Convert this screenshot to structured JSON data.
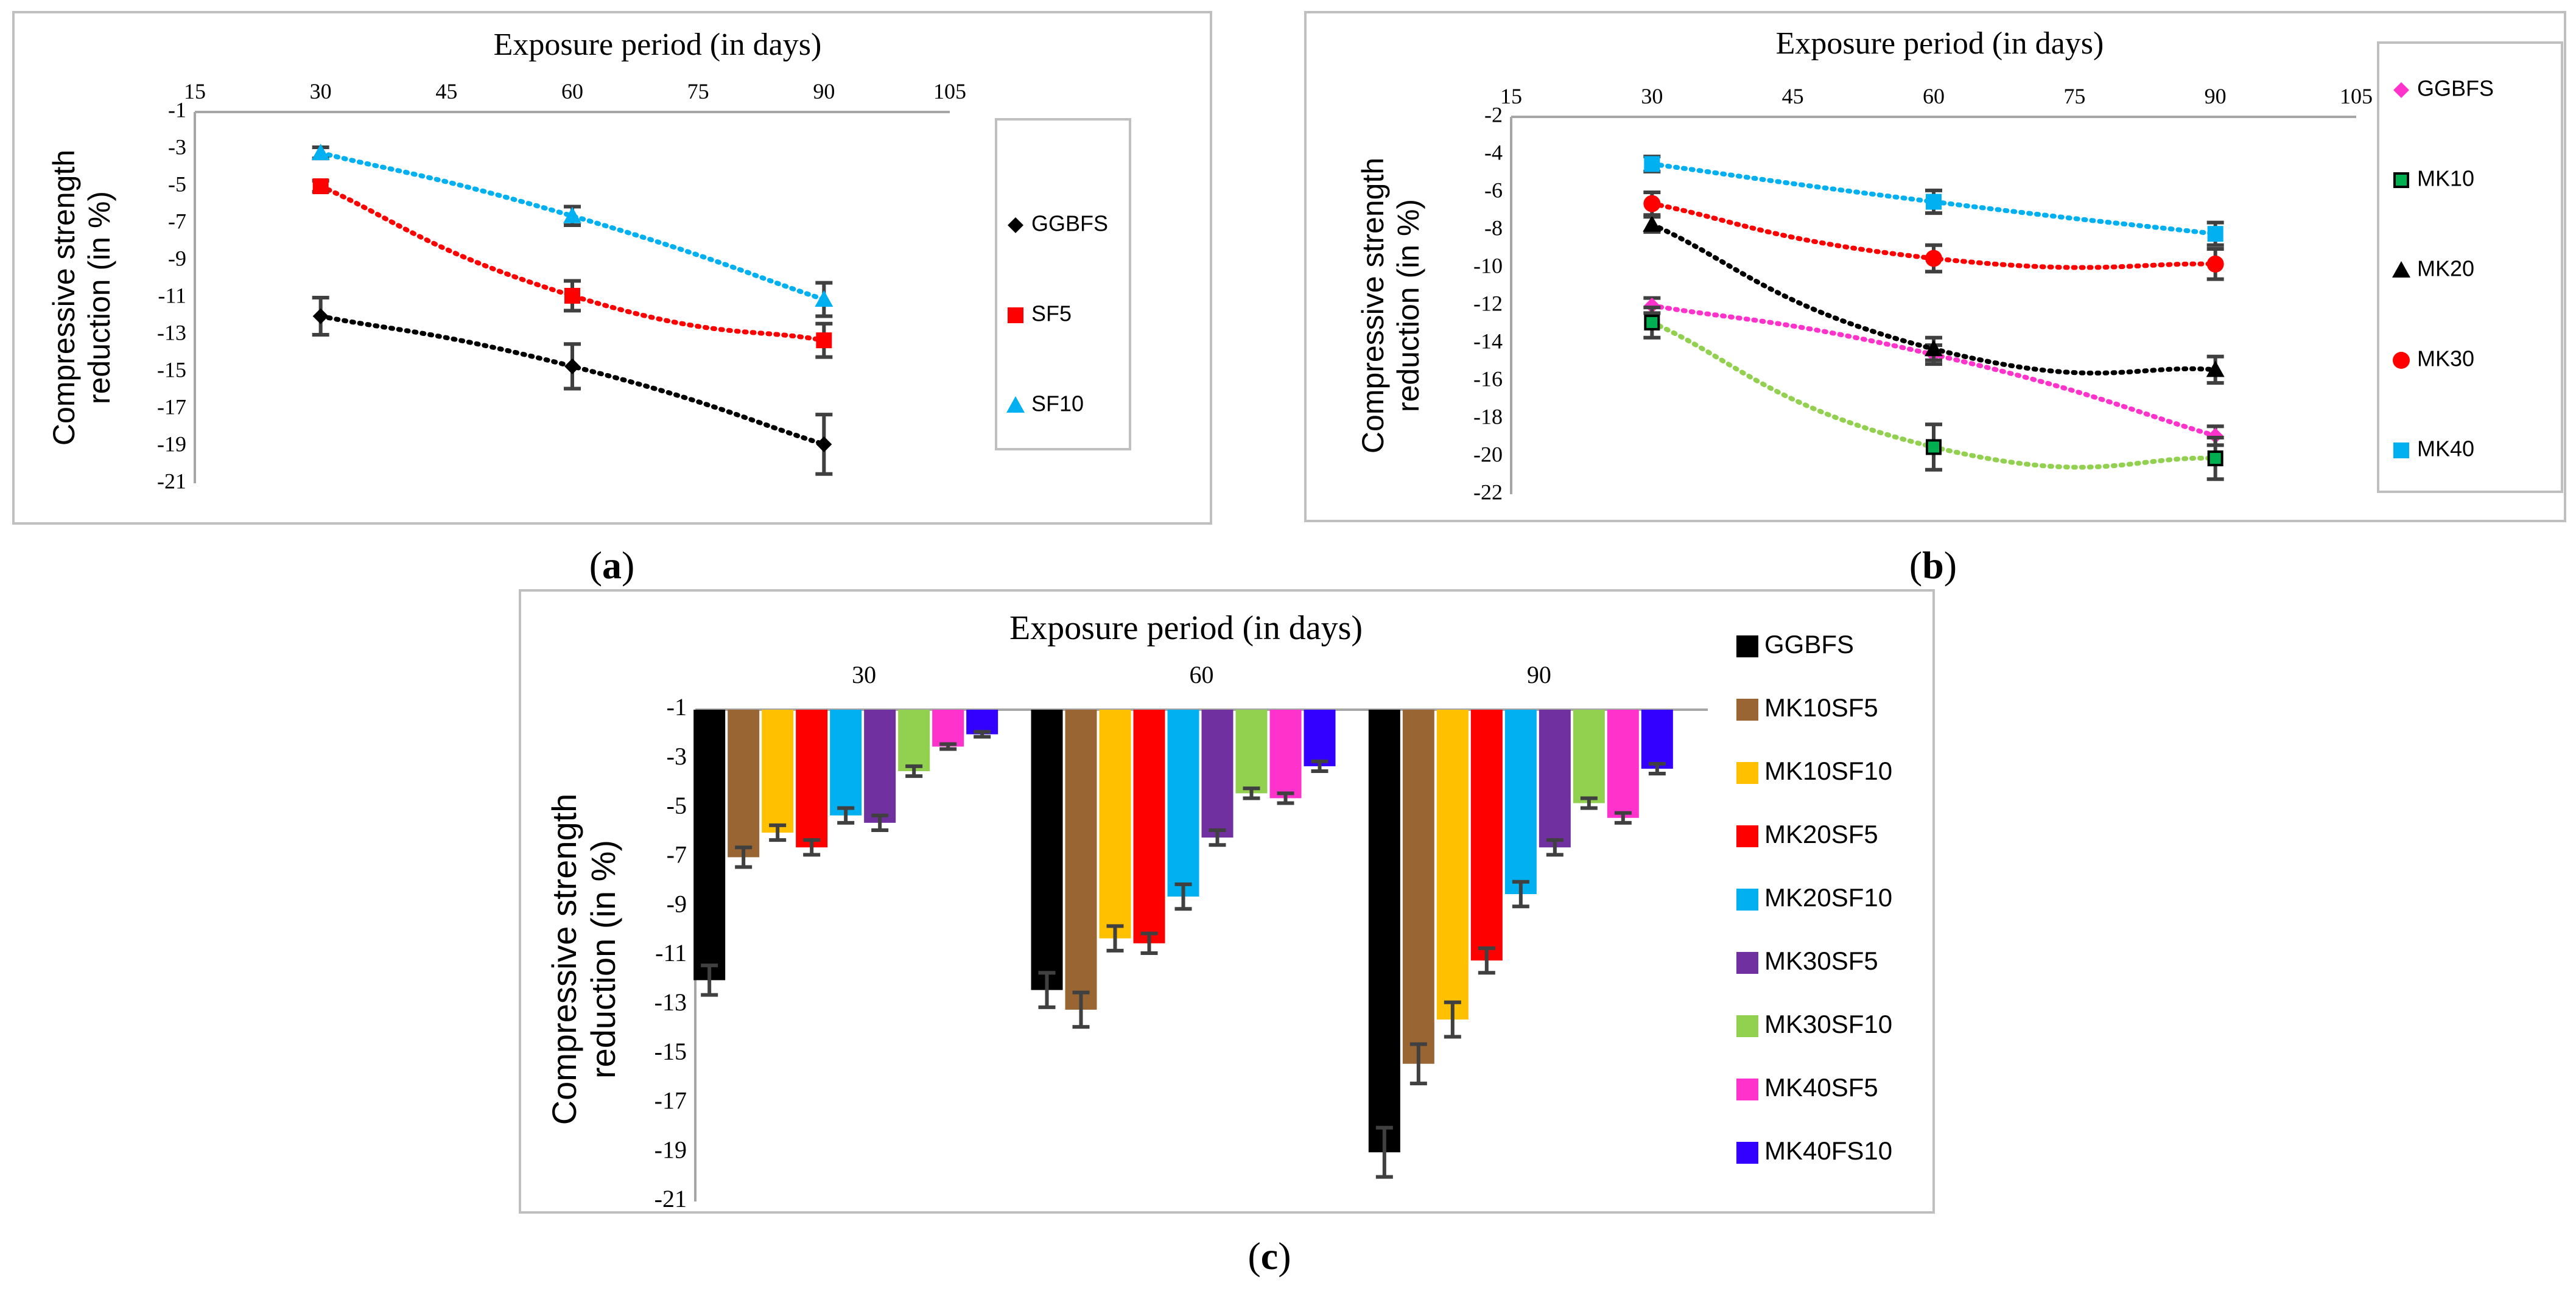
{
  "chart_data": [
    {
      "panel": "a",
      "caption_letter": "a",
      "type": "line",
      "title": "Exposure period (in  days)",
      "ylabel_lines": [
        "Compressive strength",
        "reduction (in %)"
      ],
      "xlim": [
        15,
        105
      ],
      "x_ticks": [
        15,
        30,
        45,
        60,
        75,
        90,
        105
      ],
      "ylim": [
        -21,
        -1
      ],
      "y_ticks": [
        -1,
        -3,
        -5,
        -7,
        -9,
        -11,
        -13,
        -15,
        -17,
        -19,
        -21
      ],
      "x": [
        30,
        60,
        90
      ],
      "series": [
        {
          "name": "GGBFS",
          "values": [
            -12.0,
            -14.7,
            -18.9
          ],
          "errors": [
            1.0,
            1.2,
            1.6
          ],
          "color": "#000000",
          "line_color": "#000000",
          "marker": "diamond"
        },
        {
          "name": "SF5",
          "values": [
            -5.0,
            -10.9,
            -13.3
          ],
          "errors": [
            0.3,
            0.8,
            0.9
          ],
          "color": "#ff0000",
          "line_color": "#ff0000",
          "marker": "square"
        },
        {
          "name": "SF10",
          "values": [
            -3.2,
            -6.6,
            -11.1
          ],
          "errors": [
            0.3,
            0.5,
            0.9
          ],
          "color": "#00b0f0",
          "line_color": "#00b0f0",
          "marker": "triangle"
        }
      ]
    },
    {
      "panel": "b",
      "caption_letter": "b",
      "type": "line",
      "title": "Exposure period (in  days)",
      "ylabel_lines": [
        "Compressive strength",
        "reduction (in %)"
      ],
      "xlim": [
        15,
        105
      ],
      "x_ticks": [
        15,
        30,
        45,
        60,
        75,
        90,
        105
      ],
      "ylim": [
        -22,
        -2
      ],
      "y_ticks": [
        -2,
        -4,
        -6,
        -8,
        -10,
        -12,
        -14,
        -16,
        -18,
        -20,
        -22
      ],
      "x": [
        30,
        60,
        90
      ],
      "series": [
        {
          "name": "GGBFS",
          "values": [
            -12.0,
            -14.6,
            -18.9
          ],
          "errors": [
            0.4,
            0.5,
            0.5
          ],
          "color": "#ff33cc",
          "line_color": "#ff33cc",
          "marker": "diamond"
        },
        {
          "name": "MK10",
          "values": [
            -12.9,
            -19.5,
            -20.1
          ],
          "errors": [
            0.8,
            1.2,
            1.1
          ],
          "color": "#00b050",
          "line_color": "#92d050",
          "marker": "square-outline"
        },
        {
          "name": "MK20",
          "values": [
            -7.7,
            -14.3,
            -15.4
          ],
          "errors": [
            0.4,
            0.6,
            0.7
          ],
          "color": "#000000",
          "line_color": "#000000",
          "marker": "triangle"
        },
        {
          "name": "MK30",
          "values": [
            -6.6,
            -9.5,
            -9.8
          ],
          "errors": [
            0.6,
            0.7,
            0.8
          ],
          "color": "#ff0000",
          "line_color": "#ff0000",
          "marker": "circle"
        },
        {
          "name": "MK40",
          "values": [
            -4.5,
            -6.5,
            -8.2
          ],
          "errors": [
            0.4,
            0.6,
            0.6
          ],
          "color": "#00b0f0",
          "line_color": "#00b0f0",
          "marker": "square"
        }
      ]
    },
    {
      "panel": "c",
      "caption_letter": "c",
      "type": "bar",
      "title": "Exposure period (in  days)",
      "ylabel_lines": [
        "Compressive strength",
        "reduction (in %)"
      ],
      "categories": [
        "30",
        "60",
        "90"
      ],
      "ylim": [
        -21,
        -1
      ],
      "y_ticks": [
        -1,
        -3,
        -5,
        -7,
        -9,
        -11,
        -13,
        -15,
        -17,
        -19,
        -21
      ],
      "series": [
        {
          "name": "GGBFS",
          "values": [
            -12.0,
            -12.4,
            -19.0
          ],
          "errors": [
            0.6,
            0.7,
            1.0
          ],
          "color": "#000000"
        },
        {
          "name": "MK10SF5",
          "values": [
            -7.0,
            -13.2,
            -15.4
          ],
          "errors": [
            0.4,
            0.7,
            0.8
          ],
          "color": "#996633"
        },
        {
          "name": "MK10SF10",
          "values": [
            -6.0,
            -10.3,
            -13.6
          ],
          "errors": [
            0.3,
            0.5,
            0.7
          ],
          "color": "#ffc000"
        },
        {
          "name": "MK20SF5",
          "values": [
            -6.6,
            -10.5,
            -11.2
          ],
          "errors": [
            0.3,
            0.4,
            0.5
          ],
          "color": "#ff0000"
        },
        {
          "name": "MK20SF10",
          "values": [
            -5.3,
            -8.6,
            -8.5
          ],
          "errors": [
            0.3,
            0.5,
            0.5
          ],
          "color": "#00b0f0"
        },
        {
          "name": "MK30SF5",
          "values": [
            -5.6,
            -6.2,
            -6.6
          ],
          "errors": [
            0.3,
            0.3,
            0.3
          ],
          "color": "#7030a0"
        },
        {
          "name": "MK30SF10",
          "values": [
            -3.5,
            -4.4,
            -4.8
          ],
          "errors": [
            0.2,
            0.2,
            0.2
          ],
          "color": "#92d050"
        },
        {
          "name": "MK40SF5",
          "values": [
            -2.5,
            -4.6,
            -5.4
          ],
          "errors": [
            0.1,
            0.2,
            0.2
          ],
          "color": "#ff33cc"
        },
        {
          "name": "MK40FS10",
          "values": [
            -2.0,
            -3.3,
            -3.4
          ],
          "errors": [
            0.1,
            0.2,
            0.2
          ],
          "color": "#3300ff"
        }
      ]
    }
  ]
}
